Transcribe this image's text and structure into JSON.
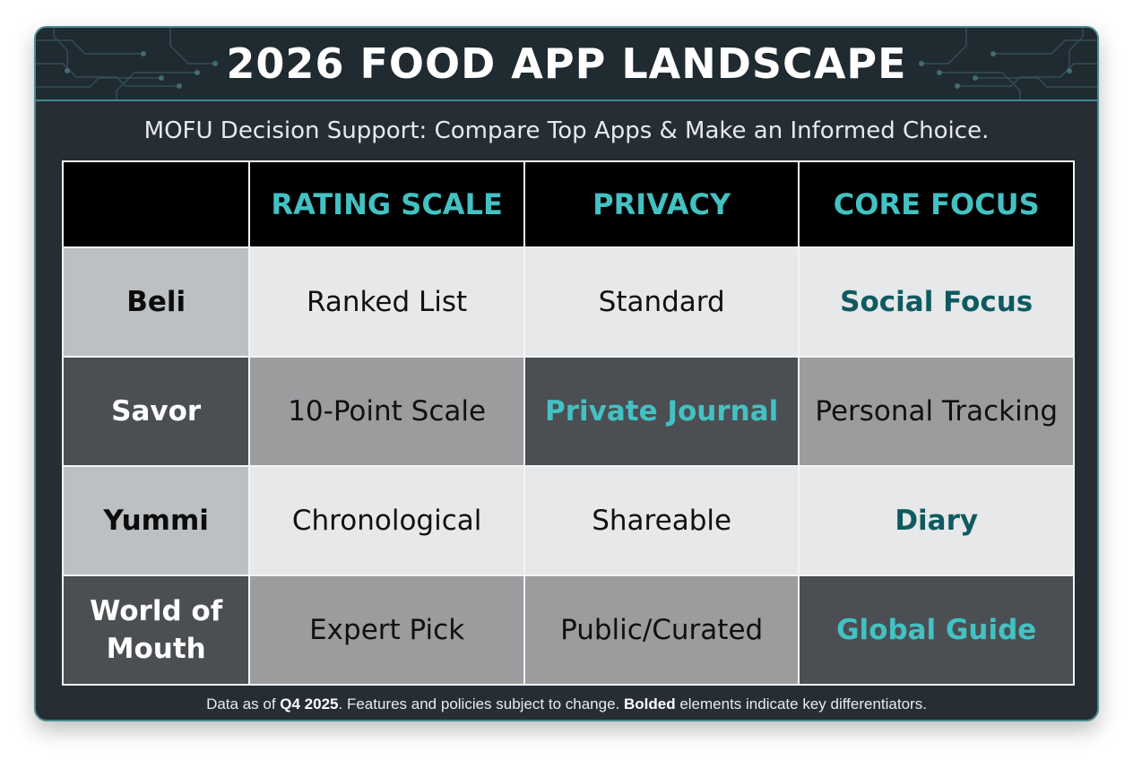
{
  "title": "2026 FOOD APP LANDSCAPE",
  "subtitle": "MOFU Decision Support: Compare Top Apps & Make an Informed Choice.",
  "table": {
    "columns": [
      "RATING SCALE",
      "PRIVACY",
      "CORE FOCUS"
    ],
    "rows": [
      {
        "app": "Beli",
        "rating_scale": "Ranked List",
        "privacy": "Standard",
        "core_focus": "Social Focus"
      },
      {
        "app": "Savor",
        "rating_scale": "10-Point Scale",
        "privacy": "Private Journal",
        "core_focus": "Personal Tracking"
      },
      {
        "app": "Yummi",
        "rating_scale": "Chronological",
        "privacy": "Shareable",
        "core_focus": "Diary"
      },
      {
        "app": "World of Mouth",
        "rating_scale": "Expert Pick",
        "privacy": "Public/Curated",
        "core_focus": "Global Guide"
      }
    ]
  },
  "footer": {
    "prefix": "Data as of ",
    "date": "Q4 2025",
    "middle": ". Features and policies subject to change. ",
    "bold_word": "Bolded",
    "suffix": " elements indicate key differentiators."
  },
  "colors": {
    "accent_teal": "#43c1c3",
    "dark_teal": "#0f5a61",
    "card_background": "#262d34",
    "header_background": "#000000"
  }
}
